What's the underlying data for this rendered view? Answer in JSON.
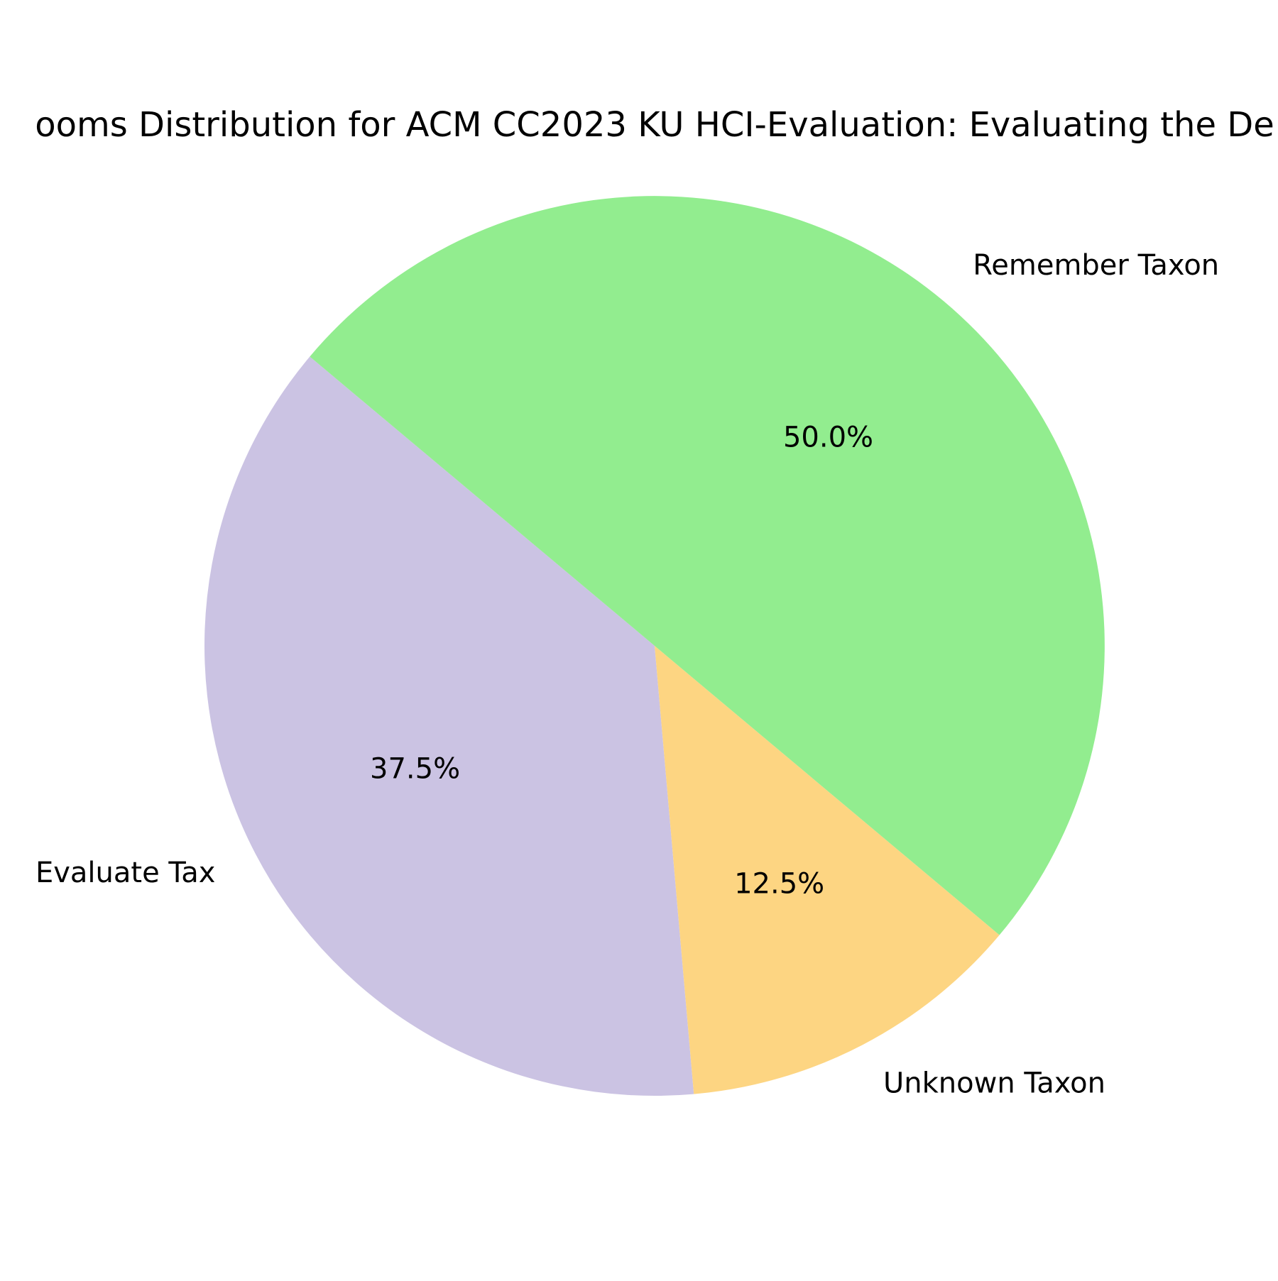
{
  "chart_data": {
    "type": "pie",
    "title": "ooms Distribution for ACM CC2023 KU HCI-Evaluation: Evaluating the De",
    "categories": [
      "Evaluate Taxon",
      "Unknown Taxon",
      "Remember Taxon"
    ],
    "values": [
      37.5,
      12.5,
      50.0
    ],
    "label_texts": [
      "Evaluate Tax",
      "Unknown Taxon",
      "Remember Taxon"
    ],
    "autopct_labels": [
      "37.5%",
      "12.5%",
      "50.0%"
    ],
    "colors": [
      "#cbc3e3",
      "#fdd582",
      "#92ed8f"
    ],
    "start_angle_deg": 140,
    "direction": "counterclockwise",
    "legend": "none"
  }
}
